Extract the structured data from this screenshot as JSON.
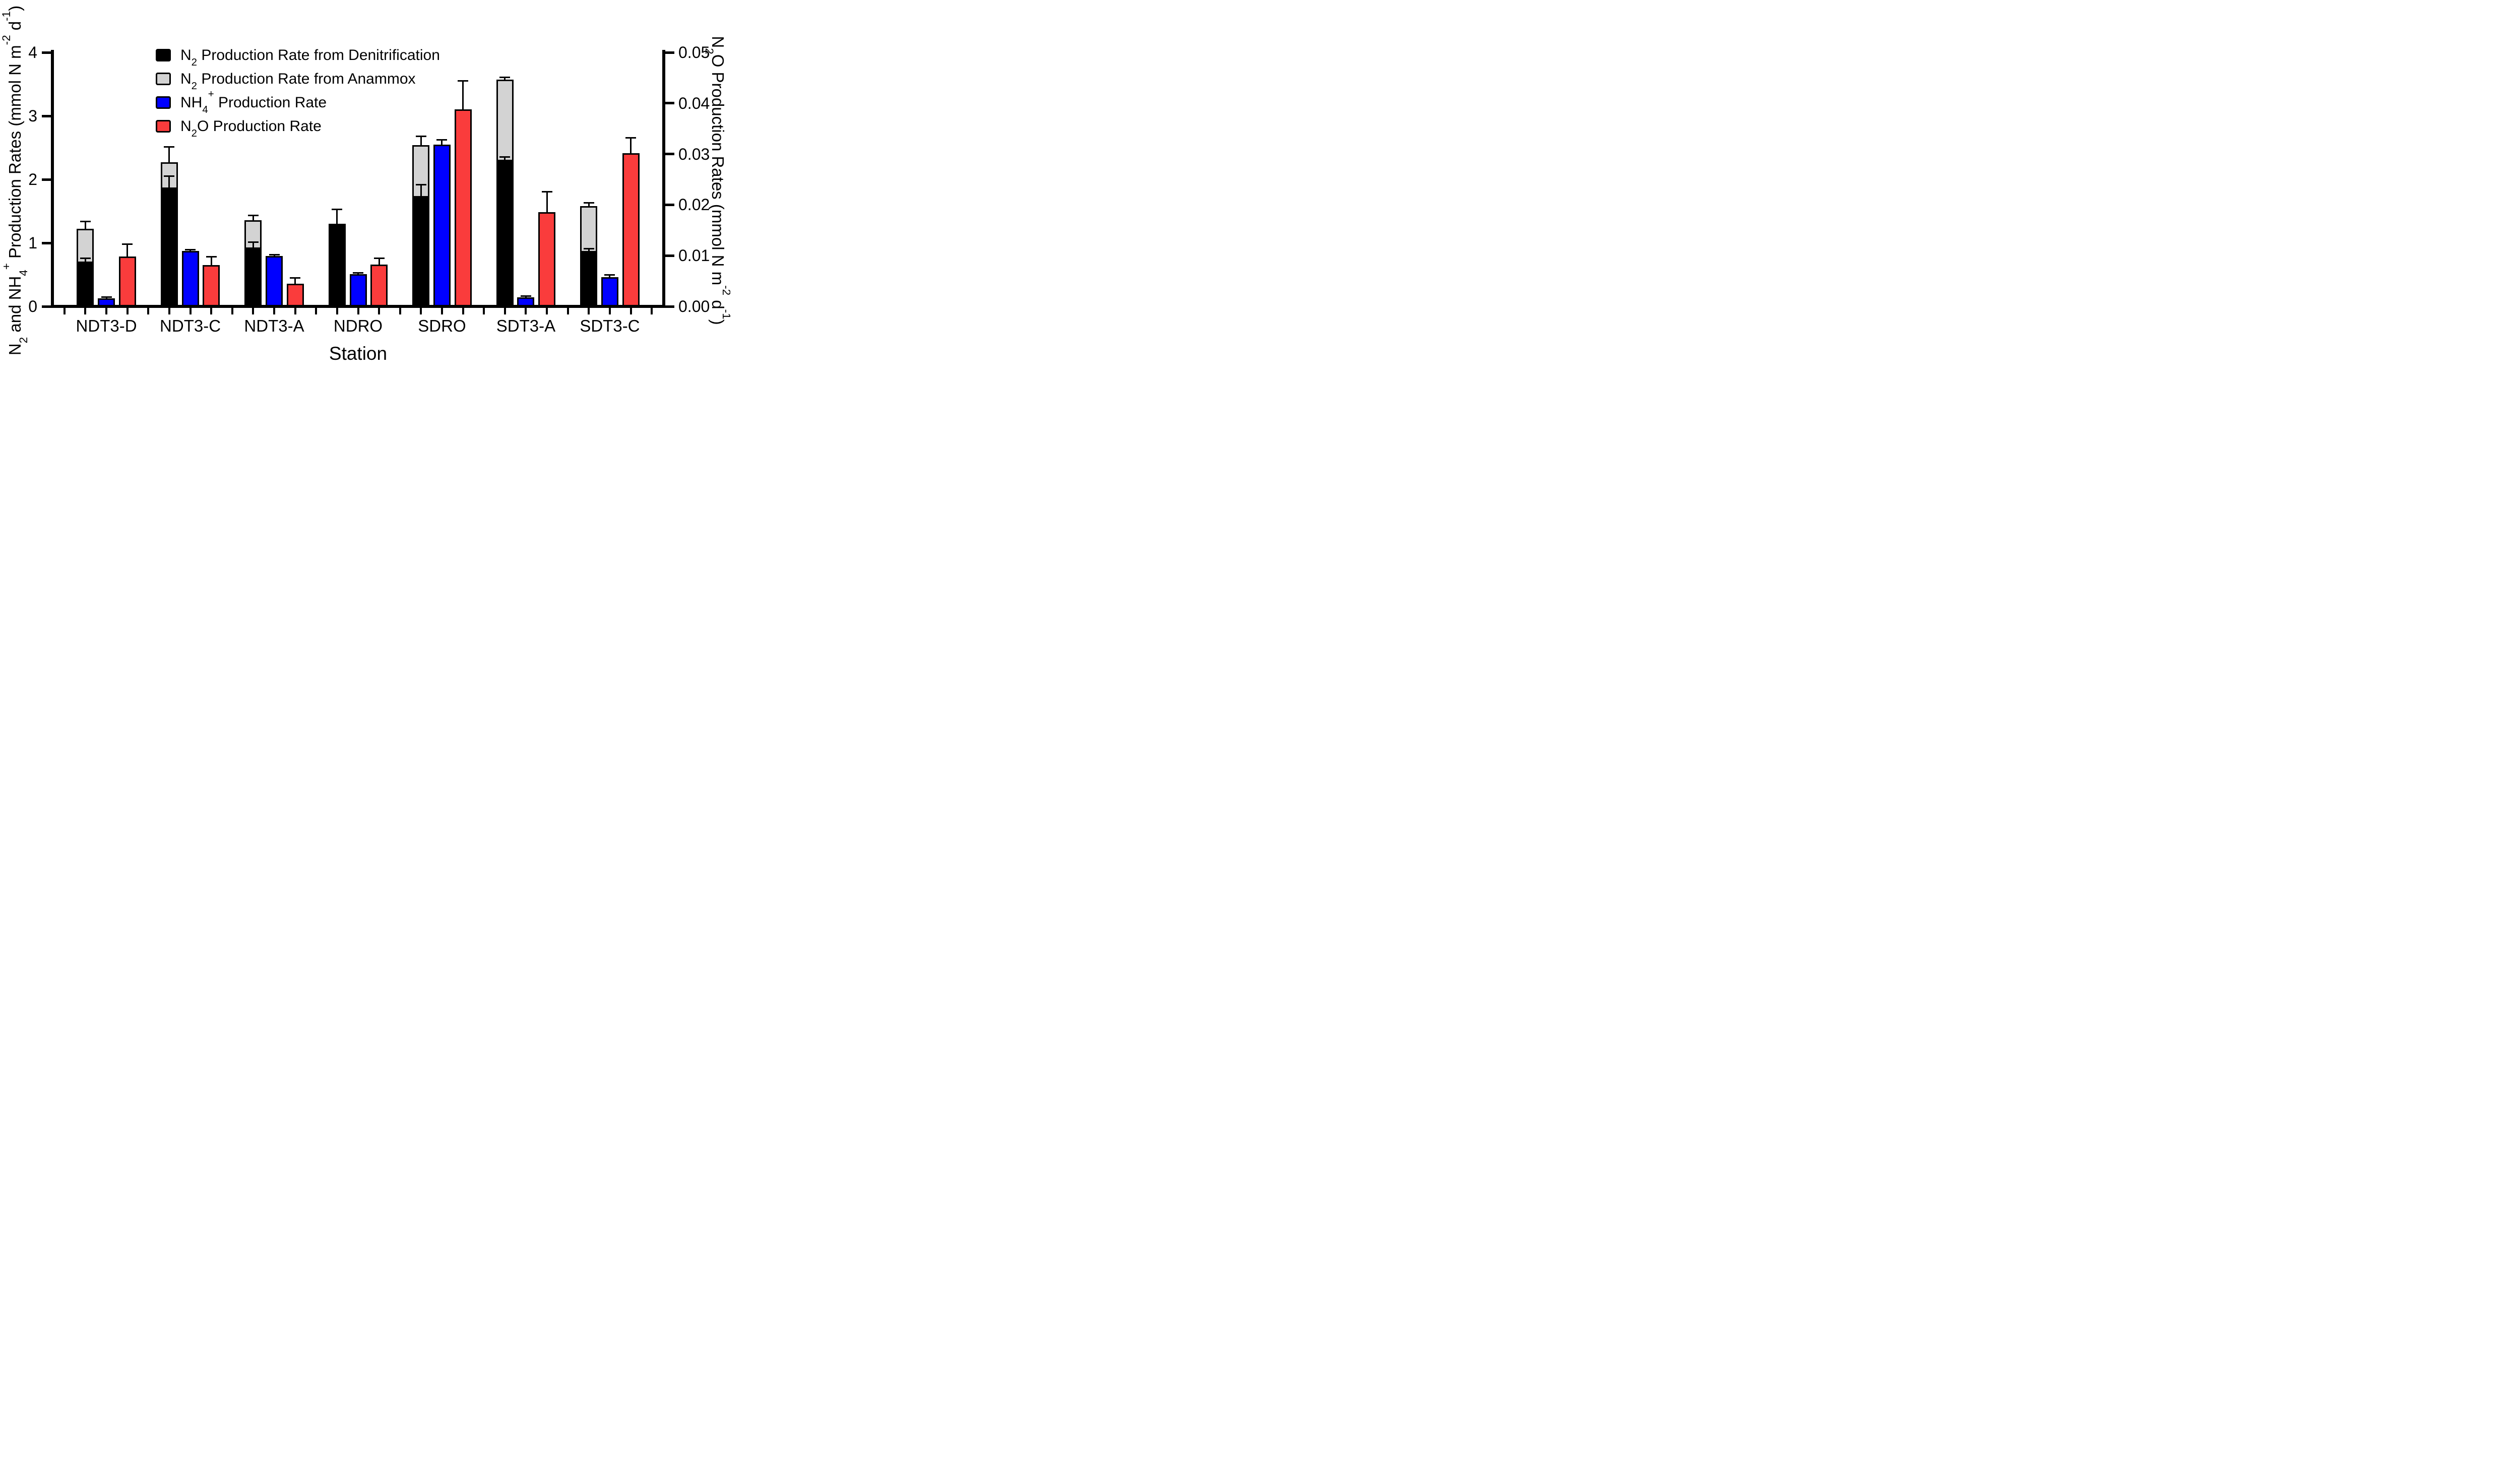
{
  "chart_data": {
    "type": "bar",
    "title": "",
    "xlabel": "Station",
    "ylabel_left": "N~2~ and NH~4~^+^ Production Rates (mmol N m^-2^ d^-1^)",
    "ylabel_right": "N~2~O Production Rates (mmol N m^-2^ d^-1^)",
    "ylim_left": [
      0,
      4
    ],
    "ylim_right": [
      0,
      0.05
    ],
    "y_left_ticks": [
      "0",
      "1",
      "2",
      "3",
      "4"
    ],
    "y_right_ticks": [
      "0.00",
      "0.01",
      "0.02",
      "0.03",
      "0.04",
      "0.05"
    ],
    "grid": false,
    "legend_position": "inside-top-left",
    "error_bars": "plus-direction-only",
    "categories": [
      "NDT3-D",
      "NDT3-C",
      "NDT3-A",
      "NDRO",
      "SDRO",
      "SDT3-A",
      "SDT3-C"
    ],
    "series": [
      {
        "name": "N~2~ Production Rate from Denitrification",
        "color": "#000000",
        "axis": "left",
        "type": "stacked-bar-base",
        "values": [
          0.71,
          1.87,
          0.93,
          1.3,
          1.74,
          2.31,
          0.87
        ],
        "errors_plus": [
          0.05,
          0.18,
          0.08,
          0.23,
          0.18,
          0.04,
          0.04
        ]
      },
      {
        "name": "N~2~ Production Rate from Anammox",
        "color": "#d3d3d3",
        "axis": "left",
        "type": "stacked-bar-top",
        "values": [
          0.51,
          0.4,
          0.43,
          0,
          0.8,
          1.26,
          0.71
        ],
        "stack_total_errors_plus": [
          0.12,
          0.24,
          0.07,
          0,
          0.14,
          0.04,
          0.05
        ]
      },
      {
        "name": "NH~4~^+^ Production Rate",
        "color": "#0000ff",
        "axis": "left",
        "type": "bar",
        "values": [
          0.13,
          0.87,
          0.79,
          0.51,
          2.55,
          0.14,
          0.46
        ],
        "errors_plus": [
          0.02,
          0.02,
          0.02,
          0.02,
          0.07,
          0.02,
          0.04
        ]
      },
      {
        "name": "N~2~O Production Rate",
        "color": "#fa3c3c",
        "axis": "right",
        "type": "bar",
        "values": [
          0.0098,
          0.0081,
          0.0045,
          0.0082,
          0.0388,
          0.0186,
          0.0302
        ],
        "errors_plus": [
          0.0025,
          0.0017,
          0.0011,
          0.0013,
          0.0056,
          0.004,
          0.003
        ]
      }
    ]
  }
}
